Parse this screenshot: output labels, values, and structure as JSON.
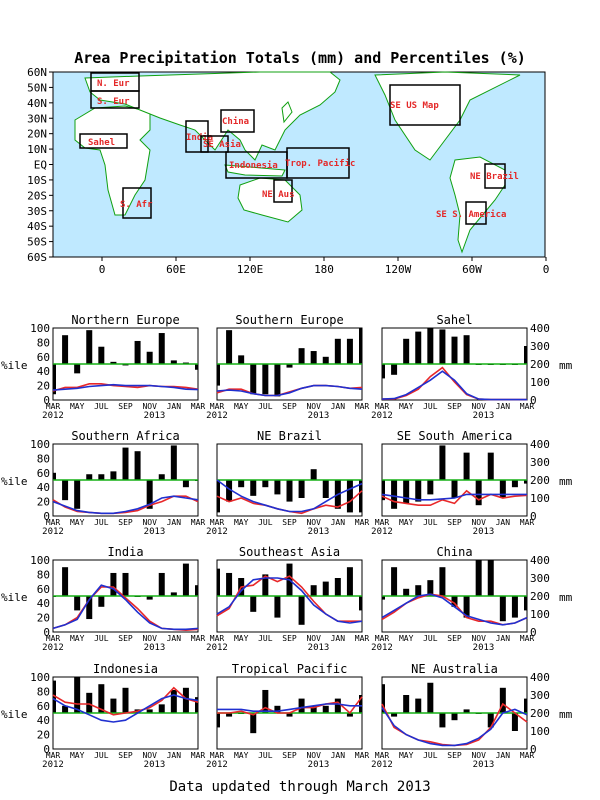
{
  "title": "Area Precipitation Totals (mm) and Percentiles (%)",
  "footer": "Data updated through March 2013",
  "colors": {
    "bar": "#000000",
    "obs": "#e8282a",
    "clim": "#2030d0",
    "median": "#15b015",
    "ocean": "#bfe9ff",
    "land": "#ffffff",
    "coast": "#10a010",
    "region": "#e42828"
  },
  "map": {
    "lat_labels": [
      "60N",
      "50N",
      "40N",
      "30N",
      "20N",
      "10N",
      "EQ",
      "10S",
      "20S",
      "30S",
      "40S",
      "50S",
      "60S"
    ],
    "lon_labels": [
      "0",
      "60E",
      "120E",
      "180",
      "120W",
      "60W",
      "0"
    ],
    "regions": [
      {
        "label": "N. Eur"
      },
      {
        "label": "S. Eur"
      },
      {
        "label": "Sahel"
      },
      {
        "label": "S. Afr"
      },
      {
        "label": "India"
      },
      {
        "label": "SE Asia"
      },
      {
        "label": "China"
      },
      {
        "label": "Indonesia"
      },
      {
        "label": "Trop. Pacific"
      },
      {
        "label": "NE Aus"
      },
      {
        "label": "SE US Map"
      },
      {
        "label": "NE Brazil"
      },
      {
        "label": "SE S. America"
      }
    ]
  },
  "panel_axes": {
    "left_label": "%ile",
    "right_label": "mm",
    "left_ticks": [
      0,
      20,
      40,
      60,
      80,
      100
    ],
    "right_ticks": [
      0,
      100,
      200,
      300,
      400
    ],
    "x_ticks": [
      "MAR",
      "MAY",
      "JUL",
      "SEP",
      "NOV",
      "JAN",
      "MAR"
    ],
    "year_start": "2012",
    "year_end": "2013"
  },
  "chart_data": [
    {
      "type": "bar",
      "title": "Northern Europe",
      "categories": [
        "MAR",
        "APR",
        "MAY",
        "JUN",
        "JUL",
        "AUG",
        "SEP",
        "OCT",
        "NOV",
        "DEC",
        "JAN",
        "FEB",
        "MAR"
      ],
      "percentile": [
        8,
        90,
        37,
        97,
        74,
        53,
        48,
        82,
        67,
        93,
        55,
        52,
        42
      ],
      "ylim": [
        0,
        100
      ],
      "y2lim": [
        0,
        400
      ],
      "series": [
        {
          "values": [
            50,
            70,
            70,
            90,
            90,
            80,
            75,
            70,
            80,
            75,
            75,
            70,
            60
          ]
        },
        {
          "values": [
            55,
            60,
            65,
            75,
            80,
            85,
            80,
            80,
            80,
            75,
            70,
            60,
            58
          ]
        }
      ]
    },
    {
      "type": "bar",
      "title": "Southern Europe",
      "categories": [
        "MAR",
        "APR",
        "MAY",
        "JUN",
        "JUL",
        "AUG",
        "SEP",
        "OCT",
        "NOV",
        "DEC",
        "JAN",
        "FEB",
        "MAR"
      ],
      "percentile": [
        20,
        97,
        62,
        8,
        8,
        5,
        45,
        72,
        68,
        60,
        85,
        85,
        100
      ],
      "ylim": [
        0,
        100
      ],
      "y2lim": [
        0,
        400
      ],
      "series": [
        {
          "values": [
            40,
            60,
            60,
            35,
            25,
            25,
            45,
            65,
            80,
            80,
            75,
            65,
            70
          ]
        },
        {
          "values": [
            50,
            55,
            50,
            35,
            25,
            25,
            40,
            65,
            80,
            80,
            75,
            65,
            60
          ]
        }
      ]
    },
    {
      "type": "bar",
      "title": "Sahel",
      "categories": [
        "MAR",
        "APR",
        "MAY",
        "JUN",
        "JUL",
        "AUG",
        "SEP",
        "OCT",
        "NOV",
        "DEC",
        "JAN",
        "FEB",
        "MAR"
      ],
      "percentile": [
        30,
        35,
        85,
        95,
        100,
        98,
        88,
        90,
        50,
        50,
        50,
        50,
        75
      ],
      "ylim": [
        0,
        100
      ],
      "y2lim": [
        0,
        400
      ],
      "series": [
        {
          "values": [
            5,
            5,
            25,
            60,
            130,
            180,
            100,
            30,
            5,
            2,
            2,
            2,
            2
          ]
        },
        {
          "values": [
            5,
            8,
            30,
            70,
            110,
            160,
            110,
            35,
            5,
            2,
            2,
            2,
            2
          ]
        }
      ]
    },
    {
      "type": "bar",
      "title": "Southern Africa",
      "categories": [
        "MAR",
        "APR",
        "MAY",
        "JUN",
        "JUL",
        "AUG",
        "SEP",
        "OCT",
        "NOV",
        "DEC",
        "JAN",
        "FEB",
        "MAR"
      ],
      "percentile": [
        60,
        22,
        10,
        58,
        58,
        62,
        95,
        90,
        10,
        58,
        98,
        40,
        50
      ],
      "ylim": [
        0,
        100
      ],
      "y2lim": [
        0,
        400
      ],
      "series": [
        {
          "values": [
            90,
            50,
            25,
            20,
            15,
            15,
            20,
            30,
            60,
            80,
            110,
            110,
            80
          ]
        },
        {
          "values": [
            80,
            55,
            30,
            20,
            15,
            15,
            25,
            40,
            65,
            100,
            110,
            100,
            90
          ]
        }
      ]
    },
    {
      "type": "bar",
      "title": "NE Brazil",
      "categories": [
        "MAR",
        "APR",
        "MAY",
        "JUN",
        "JUL",
        "AUG",
        "SEP",
        "OCT",
        "NOV",
        "DEC",
        "JAN",
        "FEB",
        "MAR"
      ],
      "percentile": [
        5,
        20,
        40,
        28,
        40,
        30,
        20,
        25,
        65,
        25,
        10,
        5,
        5
      ],
      "ylim": [
        0,
        100
      ],
      "y2lim": [
        0,
        400
      ],
      "series": [
        {
          "values": [
            110,
            80,
            100,
            70,
            60,
            40,
            25,
            15,
            40,
            60,
            50,
            80,
            140
          ]
        },
        {
          "values": [
            200,
            150,
            110,
            80,
            60,
            40,
            25,
            25,
            40,
            80,
            120,
            150,
            180
          ]
        }
      ]
    },
    {
      "type": "bar",
      "title": "SE South America",
      "categories": [
        "MAR",
        "APR",
        "MAY",
        "JUN",
        "JUL",
        "AUG",
        "SEP",
        "OCT",
        "NOV",
        "DEC",
        "JAN",
        "FEB",
        "MAR"
      ],
      "percentile": [
        22,
        10,
        18,
        20,
        30,
        98,
        25,
        88,
        15,
        88,
        25,
        40,
        45
      ],
      "ylim": [
        0,
        100
      ],
      "y2lim": [
        0,
        400
      ],
      "series": [
        {
          "values": [
            110,
            80,
            70,
            60,
            60,
            90,
            70,
            140,
            90,
            120,
            100,
            110,
            115
          ]
        },
        {
          "values": [
            120,
            110,
            100,
            90,
            90,
            95,
            100,
            120,
            120,
            120,
            120,
            120,
            120
          ]
        }
      ]
    },
    {
      "type": "bar",
      "title": "India",
      "categories": [
        "MAR",
        "APR",
        "MAY",
        "JUN",
        "JUL",
        "AUG",
        "SEP",
        "OCT",
        "NOV",
        "DEC",
        "JAN",
        "FEB",
        "MAR"
      ],
      "percentile": [
        50,
        90,
        30,
        18,
        35,
        82,
        82,
        50,
        45,
        82,
        55,
        95,
        65
      ],
      "ylim": [
        0,
        100
      ],
      "y2lim": [
        0,
        400
      ],
      "series": [
        {
          "values": [
            20,
            40,
            80,
            180,
            250,
            250,
            190,
            130,
            60,
            20,
            15,
            10,
            15
          ]
        },
        {
          "values": [
            20,
            40,
            70,
            180,
            260,
            240,
            180,
            110,
            50,
            20,
            15,
            15,
            20
          ]
        }
      ]
    },
    {
      "type": "bar",
      "title": "Southeast Asia",
      "categories": [
        "MAR",
        "APR",
        "MAY",
        "JUN",
        "JUL",
        "AUG",
        "SEP",
        "OCT",
        "NOV",
        "DEC",
        "JAN",
        "FEB",
        "MAR"
      ],
      "percentile": [
        88,
        82,
        75,
        28,
        80,
        20,
        95,
        10,
        65,
        70,
        75,
        90,
        30
      ],
      "ylim": [
        0,
        100
      ],
      "y2lim": [
        0,
        400
      ],
      "series": [
        {
          "values": [
            90,
            130,
            250,
            260,
            310,
            280,
            310,
            250,
            170,
            100,
            60,
            60,
            60
          ]
        },
        {
          "values": [
            100,
            140,
            230,
            290,
            300,
            300,
            290,
            230,
            150,
            100,
            60,
            50,
            60
          ]
        }
      ]
    },
    {
      "type": "bar",
      "title": "China",
      "categories": [
        "MAR",
        "APR",
        "MAY",
        "JUN",
        "JUL",
        "AUG",
        "SEP",
        "OCT",
        "NOV",
        "DEC",
        "JAN",
        "FEB",
        "MAR"
      ],
      "percentile": [
        45,
        90,
        60,
        65,
        72,
        90,
        35,
        20,
        100,
        100,
        15,
        20,
        30
      ],
      "ylim": [
        0,
        100
      ],
      "y2lim": [
        0,
        400
      ],
      "series": [
        {
          "values": [
            70,
            110,
            160,
            190,
            210,
            200,
            160,
            80,
            60,
            60,
            40,
            50,
            80
          ]
        },
        {
          "values": [
            80,
            120,
            160,
            200,
            210,
            190,
            140,
            90,
            70,
            50,
            40,
            50,
            80
          ]
        }
      ]
    },
    {
      "type": "bar",
      "title": "Indonesia",
      "categories": [
        "MAR",
        "APR",
        "MAY",
        "JUN",
        "JUL",
        "AUG",
        "SEP",
        "OCT",
        "NOV",
        "DEC",
        "JAN",
        "FEB",
        "MAR"
      ],
      "percentile": [
        95,
        60,
        100,
        78,
        90,
        70,
        85,
        55,
        55,
        62,
        82,
        85,
        72
      ],
      "ylim": [
        0,
        100
      ],
      "y2lim": [
        0,
        400
      ],
      "series": [
        {
          "values": [
            300,
            260,
            250,
            250,
            220,
            190,
            200,
            210,
            230,
            270,
            340,
            280,
            260
          ]
        },
        {
          "values": [
            280,
            240,
            220,
            190,
            160,
            150,
            160,
            200,
            240,
            280,
            300,
            280,
            270
          ]
        }
      ]
    },
    {
      "type": "bar",
      "title": "Tropical Pacific",
      "categories": [
        "MAR",
        "APR",
        "MAY",
        "JUN",
        "JUL",
        "AUG",
        "SEP",
        "OCT",
        "NOV",
        "DEC",
        "JAN",
        "FEB",
        "MAR"
      ],
      "percentile": [
        30,
        45,
        50,
        22,
        82,
        60,
        45,
        70,
        60,
        60,
        70,
        45,
        75
      ],
      "ylim": [
        0,
        100
      ],
      "y2lim": [
        0,
        400
      ],
      "series": [
        {
          "values": [
            200,
            200,
            210,
            190,
            230,
            200,
            200,
            230,
            230,
            250,
            260,
            200,
            290
          ]
        },
        {
          "values": [
            220,
            220,
            220,
            210,
            210,
            210,
            220,
            230,
            240,
            250,
            250,
            240,
            240
          ]
        }
      ]
    },
    {
      "type": "bar",
      "title": "NE Australia",
      "categories": [
        "MAR",
        "APR",
        "MAY",
        "JUN",
        "JUL",
        "AUG",
        "SEP",
        "OCT",
        "NOV",
        "DEC",
        "JAN",
        "FEB",
        "MAR"
      ],
      "percentile": [
        90,
        45,
        75,
        70,
        92,
        30,
        40,
        55,
        50,
        30,
        85,
        25,
        70
      ],
      "ylim": [
        0,
        100
      ],
      "y2lim": [
        0,
        400
      ],
      "series": [
        {
          "values": [
            250,
            120,
            80,
            50,
            40,
            25,
            20,
            25,
            50,
            120,
            250,
            200,
            150
          ]
        },
        {
          "values": [
            230,
            130,
            80,
            50,
            30,
            20,
            20,
            30,
            60,
            110,
            200,
            220,
            190
          ]
        }
      ]
    }
  ]
}
